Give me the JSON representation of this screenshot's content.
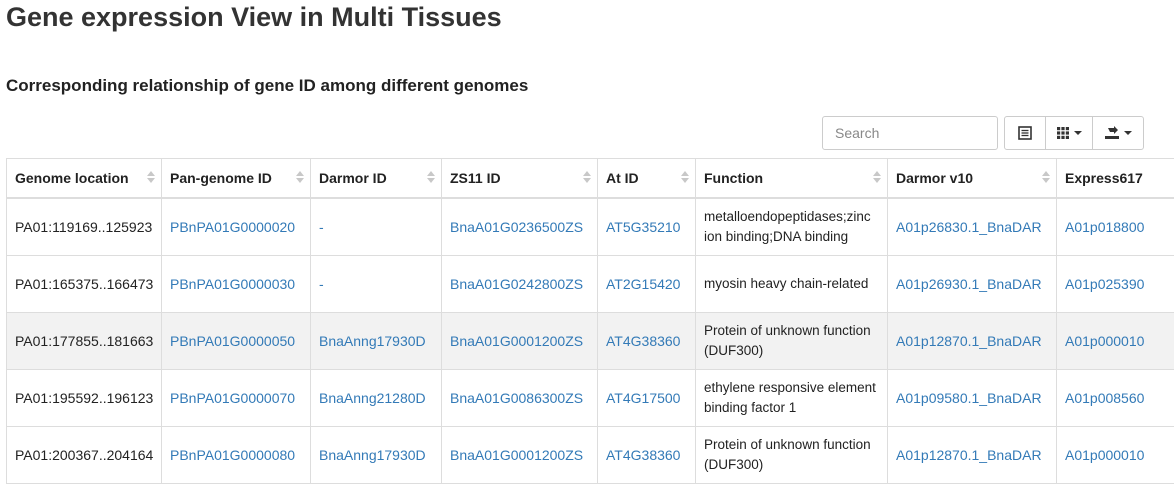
{
  "page": {
    "title": "Gene expression View in Multi Tissues",
    "subtitle": "Corresponding relationship of gene ID among different genomes"
  },
  "toolbar": {
    "search_placeholder": "Search",
    "buttons": [
      {
        "icon": "list-icon"
      },
      {
        "icon": "columns-grid-icon"
      },
      {
        "icon": "export-icon"
      }
    ]
  },
  "table": {
    "headers": [
      "Genome location",
      "Pan-genome ID",
      "Darmor ID",
      "ZS11 ID",
      "At ID",
      "Function",
      "Darmor v10",
      "Express617"
    ],
    "rows": [
      {
        "location": "PA01:119169..125923",
        "pan_id": "PBnPA01G0000020",
        "darmor_id": "-",
        "zs11_id": "BnaA01G0236500ZS",
        "at_id": "AT5G35210",
        "function": "metalloendopeptidases;zinc ion binding;DNA binding",
        "darmor_v10": "A01p26830.1_BnaDAR",
        "express617": "A01p018800"
      },
      {
        "location": "PA01:165375..166473",
        "pan_id": "PBnPA01G0000030",
        "darmor_id": "-",
        "zs11_id": "BnaA01G0242800ZS",
        "at_id": "AT2G15420",
        "function": "myosin heavy chain-related",
        "darmor_v10": "A01p26930.1_BnaDAR",
        "express617": "A01p025390"
      },
      {
        "location": "PA01:177855..181663",
        "pan_id": "PBnPA01G0000050",
        "darmor_id": "BnaAnng17930D",
        "zs11_id": "BnaA01G0001200ZS",
        "at_id": "AT4G38360",
        "function": "Protein of unknown function (DUF300)",
        "darmor_v10": "A01p12870.1_BnaDAR",
        "express617": "A01p000010"
      },
      {
        "location": "PA01:195592..196123",
        "pan_id": "PBnPA01G0000070",
        "darmor_id": "BnaAnng21280D",
        "zs11_id": "BnaA01G0086300ZS",
        "at_id": "AT4G17500",
        "function": "ethylene responsive element binding factor 1",
        "darmor_v10": "A01p09580.1_BnaDAR",
        "express617": "A01p008560"
      },
      {
        "location": "PA01:200367..204164",
        "pan_id": "PBnPA01G0000080",
        "darmor_id": "BnaAnng17930D",
        "zs11_id": "BnaA01G0001200ZS",
        "at_id": "AT4G38360",
        "function": "Protein of unknown function (DUF300)",
        "darmor_v10": "A01p12870.1_BnaDAR",
        "express617": "A01p000010"
      }
    ]
  },
  "colors": {
    "link": "#337ab7",
    "border": "#dddddd",
    "highlight_row": "#f2f2f2"
  }
}
